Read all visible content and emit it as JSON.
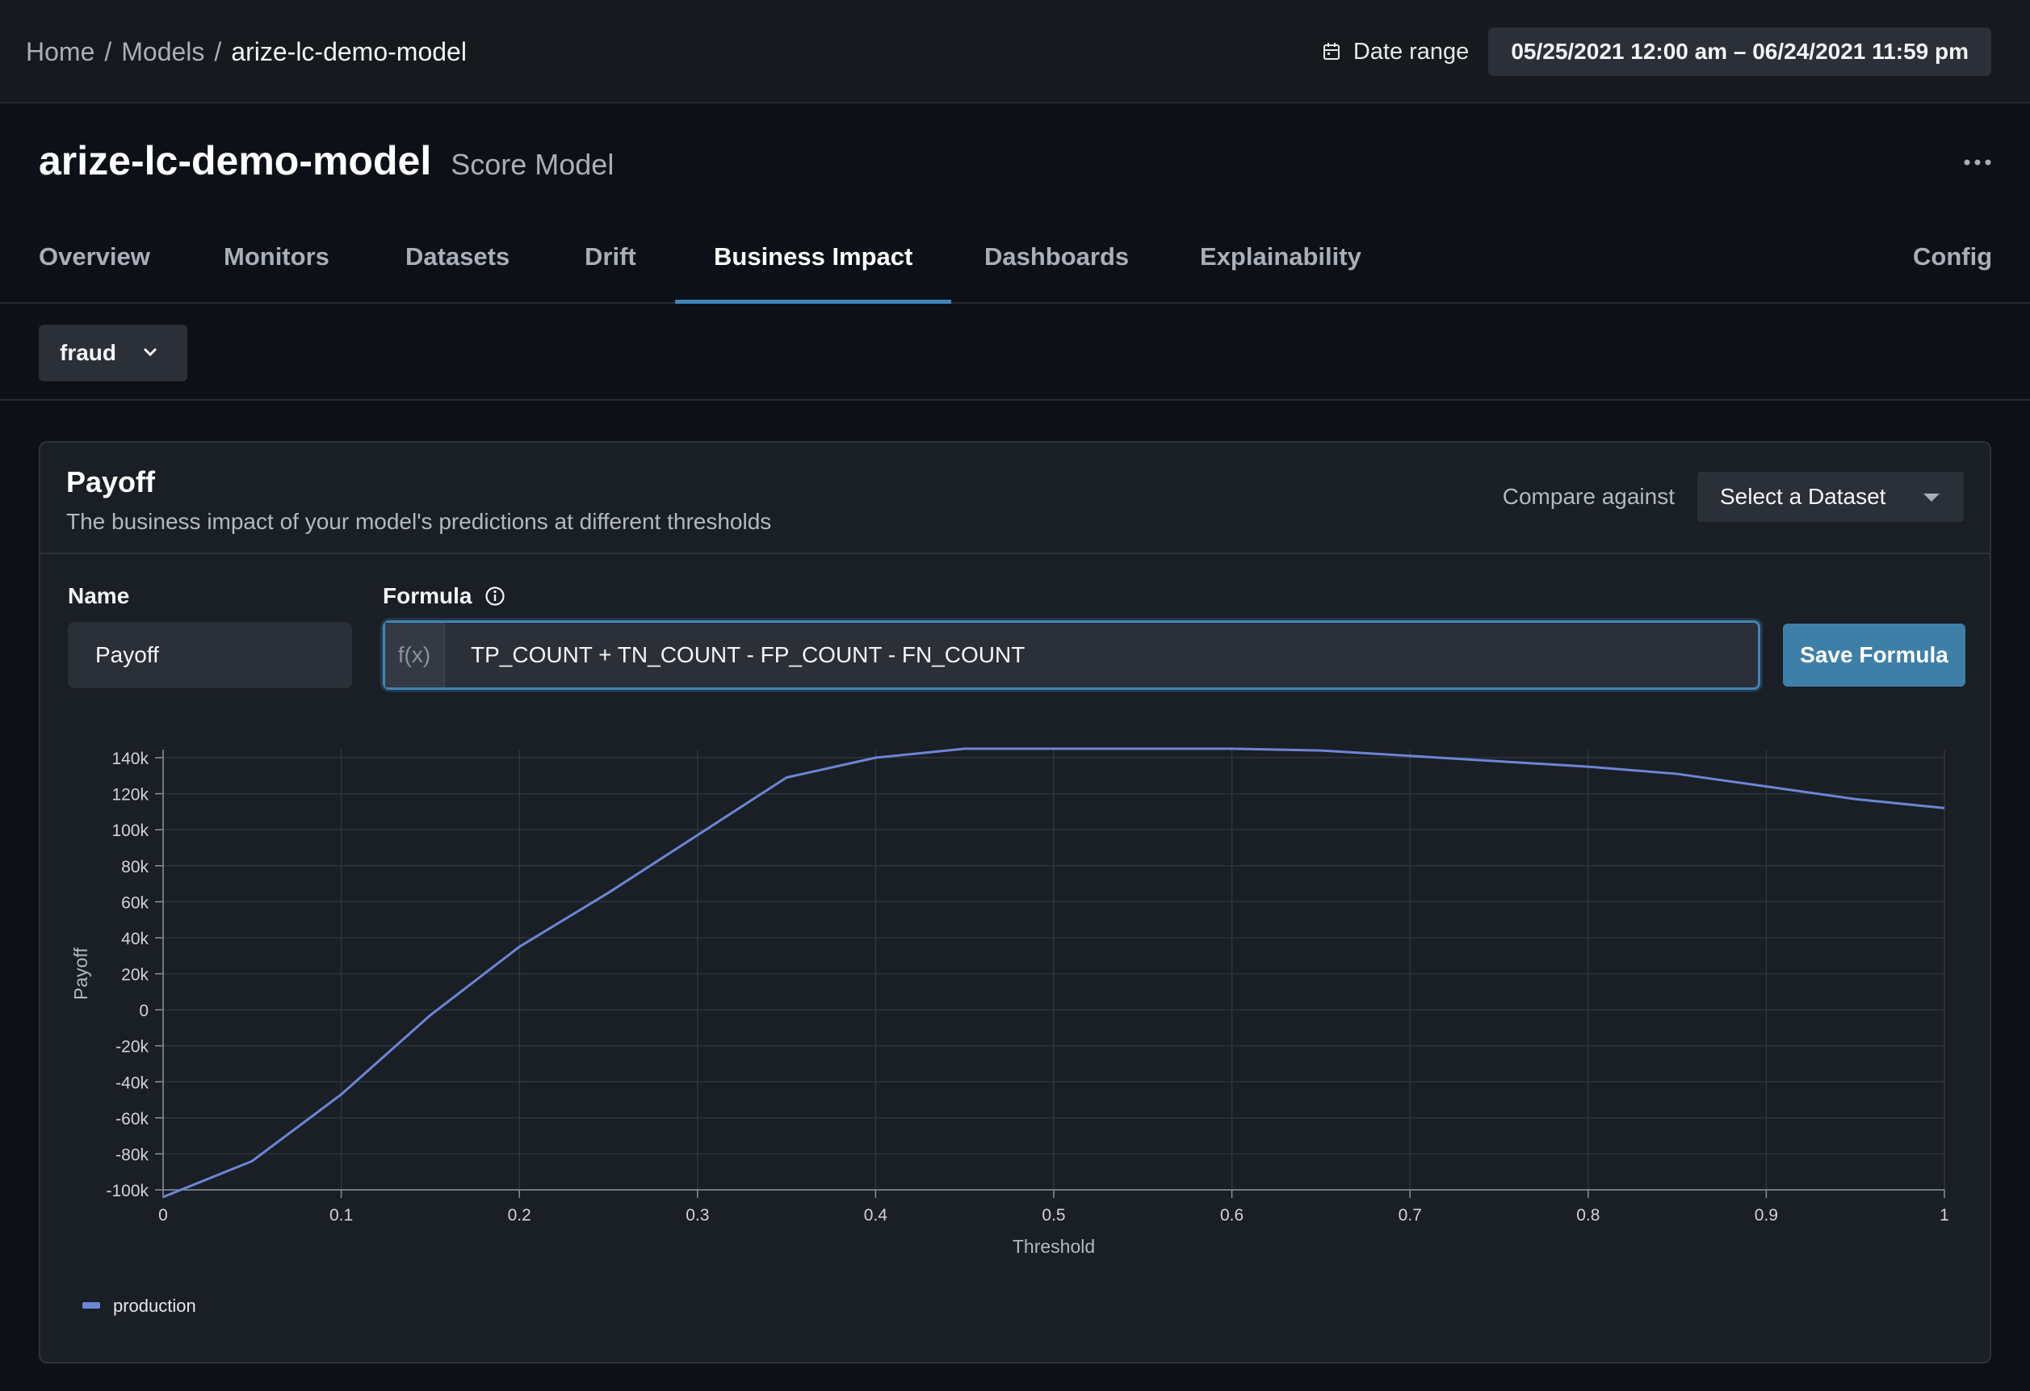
{
  "breadcrumb": {
    "items": [
      "Home",
      "Models"
    ],
    "current": "arize-lc-demo-model"
  },
  "date_range": {
    "label": "Date range",
    "value": "05/25/2021 12:00 am – 06/24/2021 11:59 pm",
    "icon": "calendar-icon"
  },
  "model": {
    "name": "arize-lc-demo-model",
    "type": "Score Model",
    "more_icon": "more-horizontal-icon"
  },
  "tabs": [
    {
      "label": "Overview",
      "active": false
    },
    {
      "label": "Monitors",
      "active": false
    },
    {
      "label": "Datasets",
      "active": false
    },
    {
      "label": "Drift",
      "active": false
    },
    {
      "label": "Business Impact",
      "active": true
    },
    {
      "label": "Dashboards",
      "active": false
    },
    {
      "label": "Explainability",
      "active": false
    },
    {
      "label": "Config",
      "active": false
    }
  ],
  "filter": {
    "selected": "fraud",
    "icon": "chevron-down-icon"
  },
  "payoff_card": {
    "title": "Payoff",
    "description": "The business impact of your model's predictions at different thresholds",
    "compare_label": "Compare against",
    "compare_placeholder": "Select a Dataset",
    "name_label": "Name",
    "name_value": "Payoff",
    "formula_label": "Formula",
    "formula_prefix": "f(x)",
    "formula_value": "TP_COUNT + TN_COUNT - FP_COUNT - FN_COUNT",
    "save_label": "Save Formula"
  },
  "colors": {
    "accent": "#3e86b9",
    "series": "#6b86d6",
    "background": "#0d1117",
    "card": "#1a1e25"
  },
  "chart_data": {
    "type": "line",
    "xlabel": "Threshold",
    "ylabel": "Payoff",
    "xlim": [
      0,
      1
    ],
    "ylim": [
      -100000,
      140000
    ],
    "x_ticks": [
      "0",
      "0.1",
      "0.2",
      "0.3",
      "0.4",
      "0.5",
      "0.6",
      "0.7",
      "0.8",
      "0.9",
      "1"
    ],
    "y_ticks": [
      "140k",
      "120k",
      "100k",
      "80k",
      "60k",
      "40k",
      "20k",
      "0",
      "-20k",
      "-40k",
      "-60k",
      "-80k",
      "-100k"
    ],
    "grid": true,
    "legend": "bottom-left",
    "series": [
      {
        "name": "production",
        "x": [
          0,
          0.05,
          0.1,
          0.15,
          0.2,
          0.25,
          0.3,
          0.35,
          0.4,
          0.45,
          0.5,
          0.55,
          0.6,
          0.65,
          0.7,
          0.75,
          0.8,
          0.85,
          0.9,
          0.95,
          1
        ],
        "values": [
          -104000,
          -84000,
          -47000,
          -3000,
          35000,
          65000,
          97000,
          129000,
          140000,
          145000,
          145000,
          145000,
          145000,
          144000,
          141000,
          138000,
          135000,
          131000,
          124000,
          117000,
          112000
        ]
      }
    ]
  }
}
